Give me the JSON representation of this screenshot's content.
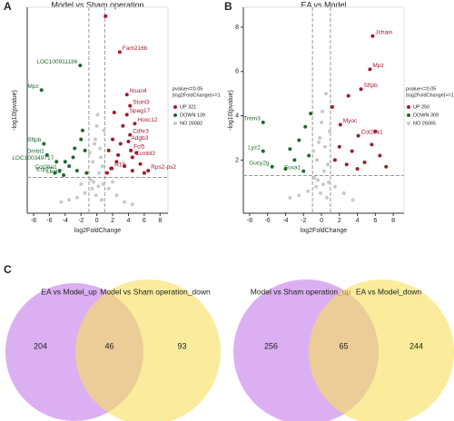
{
  "chart_data": [
    {
      "type": "scatter",
      "panel": "A",
      "title": "Model vs Sham operation",
      "xlabel": "log2FoldChange",
      "ylabel": "-log10(pvalue)",
      "xlim": [
        -8.8,
        9
      ],
      "ylim": [
        -0.3,
        8.9
      ],
      "xticks": [
        -8,
        -6,
        -4,
        -2,
        0,
        2,
        4,
        6,
        8
      ],
      "cutoff_x": [
        -1,
        1
      ],
      "cutoff_y": 1.3,
      "legend_title": [
        "pvalue<=0.05",
        "|log2FoldChange|>=1"
      ],
      "series": [
        {
          "name": "UP 321",
          "color": "#a3192c",
          "x": [
            2.9,
            3.8,
            4.2,
            3.8,
            4.8,
            4.2,
            4.0,
            4.3,
            1.9,
            4.5,
            6.5,
            1.1,
            1.5,
            2.0,
            2.5,
            3.0,
            3.5,
            4.5,
            5.0,
            5.5,
            6.0,
            1.3,
            2.2,
            3.3,
            1.8,
            2.7
          ],
          "y": [
            6.9,
            5.0,
            4.5,
            4.1,
            3.7,
            3.2,
            2.9,
            2.5,
            1.7,
            2.2,
            1.6,
            8.5,
            2.5,
            3.0,
            2.0,
            2.8,
            1.8,
            1.6,
            2.4,
            1.9,
            1.5,
            1.5,
            4.2,
            3.6,
            1.7,
            2.3
          ],
          "labels": [
            "Fam216b",
            "Nsun4",
            "Stonl3",
            "Spag17",
            "Hoxc12",
            "Cdhr3",
            "Adgb3",
            "Fcl5",
            "H19",
            "Ccmbl3",
            "Rps2-ps2",
            null,
            null,
            null,
            null,
            null,
            null,
            null,
            null,
            null,
            null,
            null,
            null,
            null,
            null,
            null
          ]
        },
        {
          "name": "DOWN 139",
          "color": "#1f6b30",
          "x": [
            -2.1,
            -7.0,
            -6.7,
            -6.3,
            -5.1,
            -4.7,
            -4.2,
            -5.3,
            -2.5,
            -1.5,
            -2.0,
            -3.0,
            -3.5,
            -1.3,
            -2.8,
            -1.8,
            -4.0
          ],
          "y": [
            6.3,
            5.2,
            2.8,
            2.3,
            2.0,
            1.6,
            1.4,
            1.5,
            1.6,
            2.5,
            3.0,
            2.2,
            1.8,
            1.5,
            2.6,
            3.4,
            2.0
          ],
          "labels": [
            "LOC100911186",
            "Mpz",
            "Sftpb",
            "Dmbt1",
            "LOC100349717",
            "Col28a1",
            "Lect1",
            "Erp27",
            null,
            null,
            null,
            null,
            null,
            null,
            null,
            null,
            null
          ]
        },
        {
          "name": "NO 26082",
          "color": "#c9c9c9",
          "x": [
            -0.8,
            -0.5,
            -0.2,
            0.1,
            0.4,
            0.7,
            0.9,
            -0.6,
            0.3,
            -0.1,
            0.6,
            -0.9,
            0.2,
            -0.4,
            0.5,
            -1.5,
            1.5,
            -2.5,
            2.5,
            -3.5,
            3.5,
            -4.5,
            4.5,
            -2.0,
            2.0,
            0.0,
            -0.3,
            0.8
          ],
          "y": [
            1.2,
            2.0,
            3.0,
            4.1,
            2.6,
            1.8,
            3.4,
            0.8,
            1.5,
            0.5,
            0.3,
            2.4,
            0.9,
            1.1,
            2.2,
            0.6,
            0.8,
            0.4,
            0.5,
            0.3,
            0.2,
            0.2,
            0.1,
            1.0,
            1.1,
            3.6,
            2.8,
            1.0
          ],
          "labels": [
            null,
            null,
            null,
            null,
            null,
            null,
            null,
            null,
            null,
            null,
            null,
            null,
            null,
            null,
            null,
            null,
            null,
            null,
            null,
            null,
            null,
            null,
            null,
            null,
            null,
            null,
            null,
            null
          ]
        }
      ]
    },
    {
      "type": "scatter",
      "panel": "B",
      "title": "EA vs Model",
      "xlabel": "log2FoldChange",
      "ylabel": "-log10(pvalue)",
      "xlim": [
        -8.7,
        9.2
      ],
      "ylim": [
        -0.4,
        8.9
      ],
      "xticks": [
        -8,
        -6,
        -4,
        -2,
        0,
        2,
        4,
        6,
        8
      ],
      "yticks": [
        2,
        4,
        6,
        8
      ],
      "cutoff_x": [
        -1,
        1
      ],
      "cutoff_y": 1.3,
      "legend_title": [
        "pvalue<=0.05",
        "|log2FoldChange|>=1"
      ],
      "series": [
        {
          "name": "UP 250",
          "color": "#a3192c",
          "x": [
            5.7,
            5.4,
            4.4,
            2.1,
            4.1,
            1.5,
            2.0,
            2.8,
            3.4,
            4.8,
            5.6,
            6.5,
            7.2,
            1.2,
            3.0,
            6.0,
            4.0
          ],
          "y": [
            7.6,
            6.1,
            5.2,
            3.6,
            3.1,
            2.0,
            2.6,
            1.8,
            2.4,
            1.9,
            2.7,
            2.2,
            1.7,
            4.4,
            4.9,
            3.3,
            1.6
          ],
          "labels": [
            "Jchain",
            "Mpz",
            "Sftpb",
            "Myoc",
            "Col28a1",
            null,
            null,
            null,
            null,
            null,
            null,
            null,
            null,
            null,
            null,
            null,
            null
          ]
        },
        {
          "name": "DOWN 309",
          "color": "#1f6b30",
          "x": [
            -6.5,
            -6.5,
            -5.5,
            -2.0,
            -1.4,
            -3.0,
            -2.5,
            -4.0,
            -1.8,
            -3.5,
            -1.2
          ],
          "y": [
            3.7,
            2.4,
            1.7,
            1.5,
            2.2,
            2.0,
            2.9,
            1.6,
            3.5,
            2.5,
            4.1
          ],
          "labels": [
            "Trem3",
            "Lyz2",
            "Gucy2g",
            "Foxa1",
            null,
            null,
            null,
            null,
            null,
            null,
            null
          ]
        },
        {
          "name": "NO 26065",
          "color": "#c9c9c9",
          "x": [
            -0.8,
            -0.5,
            -0.2,
            0.1,
            0.4,
            0.7,
            0.9,
            -0.6,
            0.3,
            -0.1,
            0.6,
            -0.9,
            0.2,
            -0.4,
            0.5,
            -1.5,
            1.5,
            -2.5,
            2.5,
            -3.5,
            3.5,
            0.0,
            -0.3,
            0.8
          ],
          "y": [
            1.2,
            2.0,
            3.0,
            4.2,
            2.6,
            1.8,
            3.3,
            0.8,
            1.5,
            0.5,
            0.3,
            2.4,
            0.9,
            1.1,
            5.0,
            0.6,
            0.8,
            0.4,
            0.5,
            0.3,
            0.2,
            3.7,
            2.8,
            1.0
          ],
          "labels": [
            null,
            null,
            null,
            null,
            null,
            null,
            null,
            null,
            null,
            null,
            null,
            null,
            null,
            null,
            null,
            null,
            null,
            null,
            null,
            null,
            null,
            null,
            null,
            null
          ]
        }
      ]
    },
    {
      "type": "venn",
      "panel": "C",
      "sets": [
        {
          "name": "EA vs Model_up",
          "color": "#c57ae9"
        },
        {
          "name": "Model vs Sham operation_down",
          "color": "#f6e05a"
        }
      ],
      "values": [
        204,
        46,
        93
      ]
    },
    {
      "type": "venn",
      "sets": [
        {
          "name": "Model vs Sham operation_up",
          "color": "#c57ae9"
        },
        {
          "name": "EA vs Model_down",
          "color": "#f6e05a"
        }
      ],
      "values": [
        256,
        65,
        244
      ]
    }
  ]
}
